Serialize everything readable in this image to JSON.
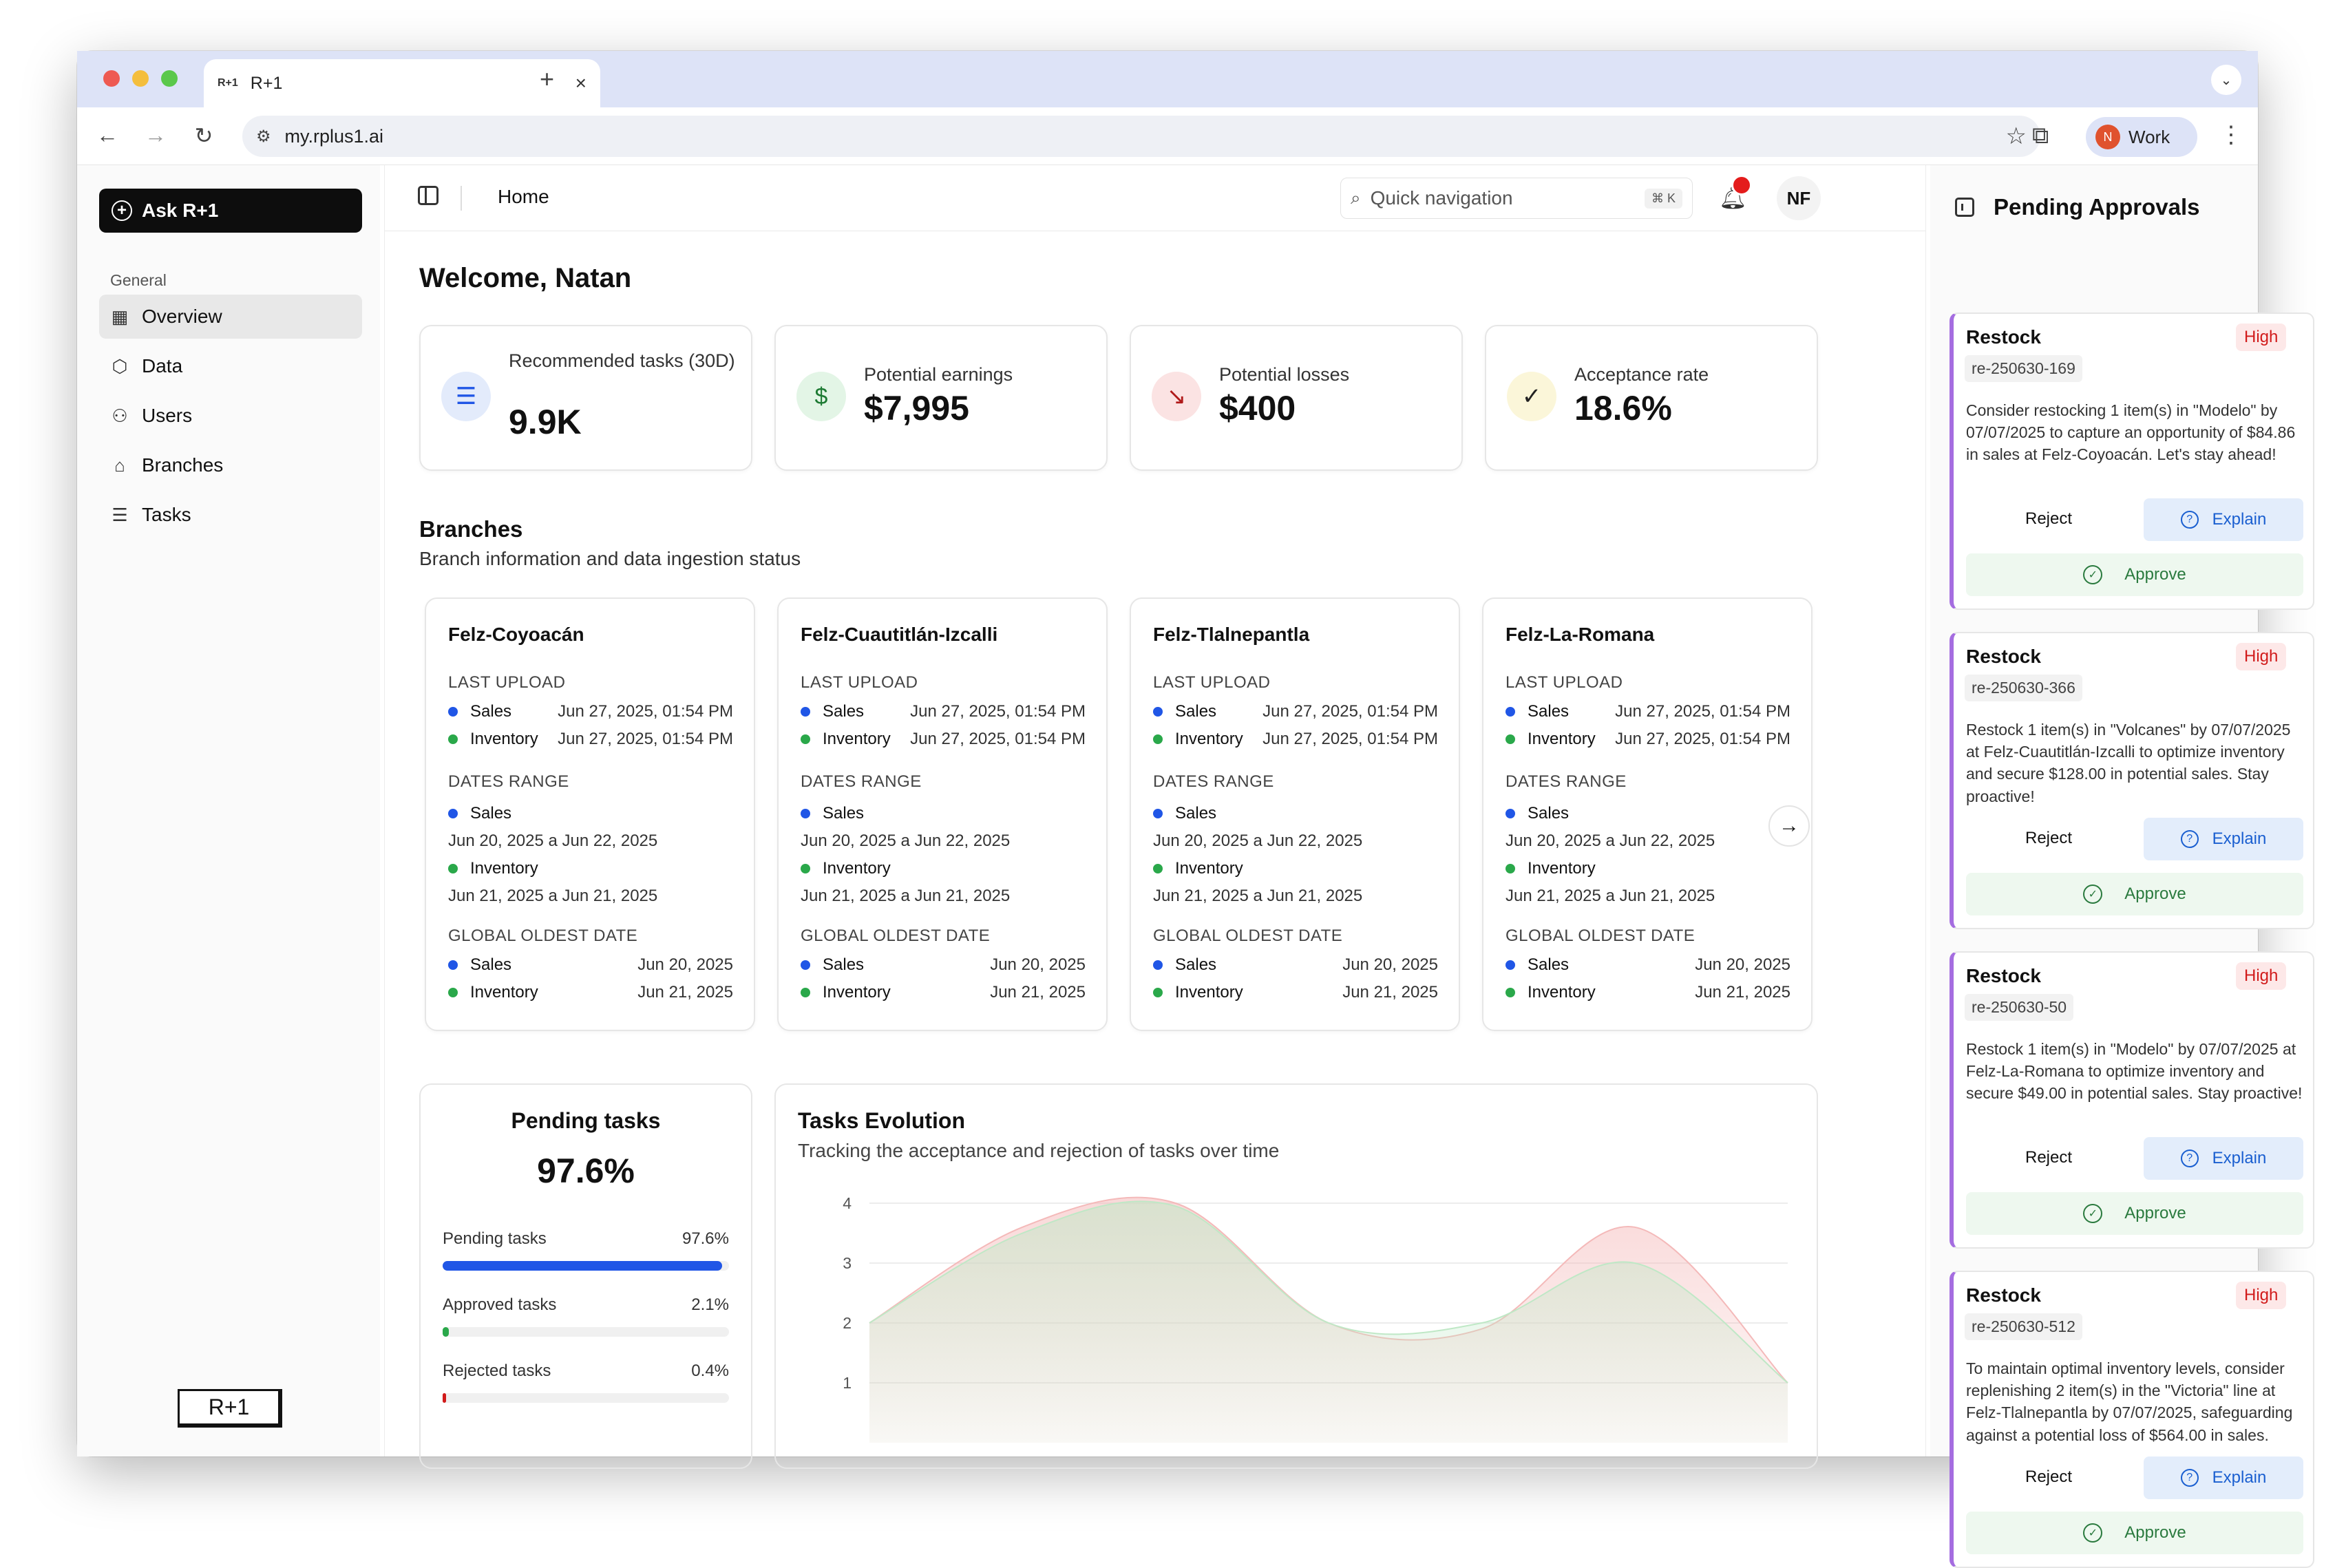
{
  "browser": {
    "tab_title": "R+1",
    "tab_favicon": "R+1",
    "url": "my.rplus1.ai",
    "profile_initial": "N",
    "profile_name": "Work"
  },
  "sidebar": {
    "ask_button": "Ask R+1",
    "section_label": "General",
    "items": [
      {
        "label": "Overview",
        "icon": "grid-icon",
        "active": true
      },
      {
        "label": "Data",
        "icon": "cube-icon"
      },
      {
        "label": "Users",
        "icon": "users-icon"
      },
      {
        "label": "Branches",
        "icon": "store-icon"
      },
      {
        "label": "Tasks",
        "icon": "list-icon"
      }
    ],
    "logo": "R+1"
  },
  "header": {
    "breadcrumb": "Home",
    "search_placeholder": "Quick navigation",
    "shortcut": "⌘ K",
    "avatar": "NF"
  },
  "welcome": "Welcome, Natan",
  "stats": [
    {
      "label": "Recommended tasks (30D)",
      "value": "9.9K",
      "icon": "list-check-icon",
      "color": "#e3ebfb"
    },
    {
      "label": "Potential earnings",
      "value": "$7,995",
      "icon": "dollar-icon",
      "color": "#e3f5e6"
    },
    {
      "label": "Potential losses",
      "value": "$400",
      "icon": "trend-down-icon",
      "color": "#fbe3e3"
    },
    {
      "label": "Acceptance rate",
      "value": "18.6%",
      "icon": "check-circle-icon",
      "color": "#fbf6d9"
    }
  ],
  "branches": {
    "title": "Branches",
    "subtitle": "Branch information and data ingestion status",
    "labels": {
      "last_upload": "LAST UPLOAD",
      "dates_range": "DATES RANGE",
      "global_oldest": "GLOBAL OLDEST DATE",
      "sales": "Sales",
      "inventory": "Inventory"
    },
    "cards": [
      {
        "name": "Felz-Coyoacán",
        "last_sales": "Jun 27, 2025, 01:54 PM",
        "last_inv": "Jun 27, 2025, 01:54 PM",
        "range_sales": "Jun 20, 2025 a Jun 22, 2025",
        "range_inv": "Jun 21, 2025 a Jun 21, 2025",
        "oldest_sales": "Jun 20, 2025",
        "oldest_inv": "Jun 21, 2025"
      },
      {
        "name": "Felz-Cuautitlán-Izcalli",
        "last_sales": "Jun 27, 2025, 01:54 PM",
        "last_inv": "Jun 27, 2025, 01:54 PM",
        "range_sales": "Jun 20, 2025 a Jun 22, 2025",
        "range_inv": "Jun 21, 2025 a Jun 21, 2025",
        "oldest_sales": "Jun 20, 2025",
        "oldest_inv": "Jun 21, 2025"
      },
      {
        "name": "Felz-Tlalnepantla",
        "last_sales": "Jun 27, 2025, 01:54 PM",
        "last_inv": "Jun 27, 2025, 01:54 PM",
        "range_sales": "Jun 20, 2025 a Jun 22, 2025",
        "range_inv": "Jun 21, 2025 a Jun 21, 2025",
        "oldest_sales": "Jun 20, 2025",
        "oldest_inv": "Jun 21, 2025"
      },
      {
        "name": "Felz-La-Romana",
        "last_sales": "Jun 27, 2025, 01:54 PM",
        "last_inv": "Jun 27, 2025, 01:54 PM",
        "range_sales": "Jun 20, 2025 a Jun 22, 2025",
        "range_inv": "Jun 21, 2025 a Jun 21, 2025",
        "oldest_sales": "Jun 20, 2025",
        "oldest_inv": "Jun 21, 2025"
      }
    ]
  },
  "pending": {
    "title": "Pending tasks",
    "value": "97.6%",
    "rows": [
      {
        "label": "Pending tasks",
        "value": "97.6%",
        "fraction": 0.976,
        "color": "#2056e6"
      },
      {
        "label": "Approved tasks",
        "value": "2.1%",
        "fraction": 0.021,
        "color": "#2aa84a"
      },
      {
        "label": "Rejected tasks",
        "value": "0.4%",
        "fraction": 0.004,
        "color": "#d11a1a"
      }
    ]
  },
  "evolution": {
    "title": "Tasks Evolution",
    "subtitle": "Tracking the acceptance and rejection of tasks over time"
  },
  "chart_data": {
    "type": "area",
    "ylim": [
      0,
      4
    ],
    "yticks": [
      1,
      2,
      3,
      4
    ],
    "x": [
      0,
      1,
      2,
      3,
      4,
      5,
      6
    ],
    "series": [
      {
        "values": [
          2,
          3.6,
          4,
          2,
          1.9,
          3.6,
          1
        ],
        "color": "#f4b9b9"
      },
      {
        "values": [
          2,
          3.5,
          3.95,
          2,
          2,
          3,
          1
        ],
        "color": "#bfe8c6"
      }
    ]
  },
  "approvals": {
    "title": "Pending Approvals",
    "reject": "Reject",
    "explain": "Explain",
    "approve": "Approve",
    "cards": [
      {
        "type": "Restock",
        "priority": "High",
        "code": "re-250630-169",
        "text": "Consider restocking 1 item(s) in \"Modelo\" by 07/07/2025 to capture an opportunity of $84.86 in sales at Felz-Coyoacán. Let's stay ahead!"
      },
      {
        "type": "Restock",
        "priority": "High",
        "code": "re-250630-366",
        "text": "Restock 1 item(s) in \"Volcanes\" by 07/07/2025 at Felz-Cuautitlán-Izcalli to optimize inventory and secure $128.00 in potential sales. Stay proactive!"
      },
      {
        "type": "Restock",
        "priority": "High",
        "code": "re-250630-50",
        "text": "Restock 1 item(s) in \"Modelo\" by 07/07/2025 at Felz-La-Romana to optimize inventory and secure $49.00 in potential sales. Stay proactive!"
      },
      {
        "type": "Restock",
        "priority": "High",
        "code": "re-250630-512",
        "text": "To maintain optimal inventory levels, consider replenishing 2 item(s) in the \"Victoria\" line at Felz-Tlalnepantla by 07/07/2025, safeguarding against a potential loss of $564.00 in sales."
      }
    ]
  }
}
